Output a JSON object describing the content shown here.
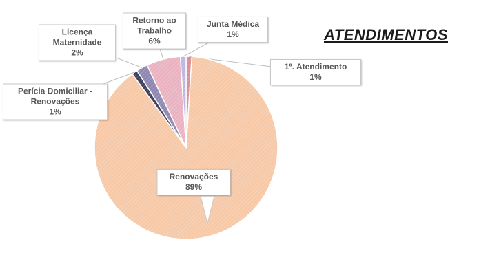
{
  "chart_data": {
    "type": "pie",
    "title": "ATENDIMENTOS",
    "categories": [
      "1º. Atendimento",
      "Renovações",
      "Perícia Domiciliar - Renovações",
      "Licença Maternidade",
      "Retorno ao Trabalho",
      "Junta Médica"
    ],
    "values": [
      1,
      89,
      1,
      2,
      6,
      1
    ],
    "value_labels": [
      "1%",
      "89%",
      "1%",
      "2%",
      "6%",
      "1%"
    ],
    "colors": [
      "#d98f95",
      "#f6c9a8",
      "#3f3f5c",
      "#8f88b2",
      "#eab3c2",
      "#b9b7e3"
    ]
  }
}
